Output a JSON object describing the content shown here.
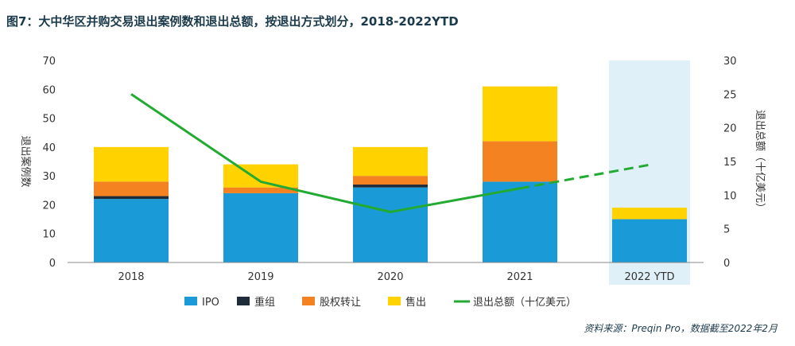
{
  "title": "图7：大中华区并购交易退出案例数和退出总额，按退出方式划分，2018-2022YTD",
  "footer": "资料来源：Preqin Pro，数据截至2022年2月",
  "chart_data": {
    "type": "bar",
    "stacked": true,
    "categories": [
      "2018",
      "2019",
      "2020",
      "2021",
      "2022 YTD"
    ],
    "highlight_category": "2022 YTD",
    "ylabel": "退出案例数",
    "ylabel_right": "退出总额（十亿美元）",
    "ylim": [
      0,
      70
    ],
    "yticks": [
      0,
      10,
      20,
      30,
      40,
      50,
      60,
      70
    ],
    "ylim_right": [
      0,
      30
    ],
    "yticks_right": [
      0,
      5,
      10,
      15,
      20,
      25,
      30
    ],
    "series": [
      {
        "name": "IPO",
        "color": "#1a9ad6",
        "values": [
          22,
          24,
          26,
          28,
          15
        ]
      },
      {
        "name": "重组",
        "color": "#1f2d3a",
        "values": [
          1,
          0,
          1,
          0,
          0
        ]
      },
      {
        "name": "股权转让",
        "color": "#f58220",
        "values": [
          5,
          2,
          3,
          14,
          0
        ]
      },
      {
        "name": "售出",
        "color": "#ffd200",
        "values": [
          12,
          8,
          10,
          19,
          4
        ]
      }
    ],
    "line_series": {
      "name": "退出总额（十亿美元）",
      "color": "#22aa33",
      "axis": "right",
      "values": [
        25,
        12,
        7.5,
        11,
        14.5
      ],
      "dashed_from_index": 3
    },
    "legend_position": "bottom",
    "grid": false
  }
}
